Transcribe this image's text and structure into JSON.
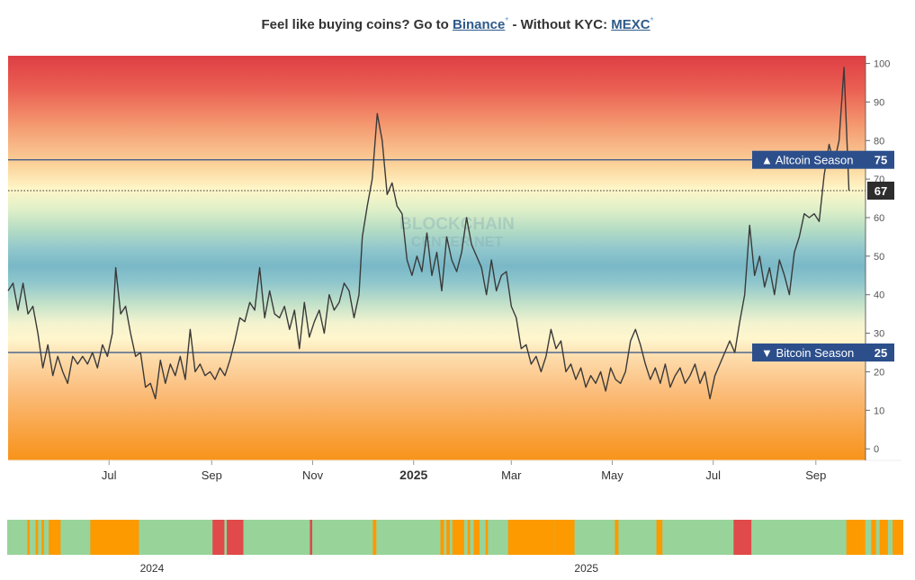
{
  "promo": {
    "lead": "Feel like buying coins? Go to",
    "binance": "Binance",
    "star": "*",
    "mid": "- Without KYC:",
    "mexc": "MEXC"
  },
  "chart_data": [
    {
      "type": "line",
      "ylim": [
        -3,
        102
      ],
      "y_ticks": [
        0,
        10,
        20,
        30,
        40,
        50,
        60,
        70,
        80,
        90,
        100
      ],
      "x_tick_labels": [
        "Jul",
        "Sep",
        "Nov",
        "2025",
        "Mar",
        "May",
        "Jul",
        "Sep"
      ],
      "x_tick_dates": [
        "2024-07-01",
        "2024-09-01",
        "2024-11-01",
        "2025-01-01",
        "2025-03-01",
        "2025-05-01",
        "2025-07-01",
        "2025-09-01"
      ],
      "x_range": [
        "2024-05-01",
        "2025-10-01"
      ],
      "watermark": [
        "BLOCKCHAIN",
        "CENTER.NET"
      ],
      "thresholds": [
        {
          "label": "▲ Altcoin Season",
          "value": 75
        },
        {
          "label": "▼ Bitcoin Season",
          "value": 25
        }
      ],
      "current": {
        "value": 67
      },
      "series": [
        {
          "points": [
            [
              "2024-05-01",
              41
            ],
            [
              "2024-05-04",
              43
            ],
            [
              "2024-05-07",
              36
            ],
            [
              "2024-05-10",
              43
            ],
            [
              "2024-05-13",
              35
            ],
            [
              "2024-05-16",
              37
            ],
            [
              "2024-05-19",
              30
            ],
            [
              "2024-05-22",
              21
            ],
            [
              "2024-05-25",
              27
            ],
            [
              "2024-05-28",
              19
            ],
            [
              "2024-05-31",
              24
            ],
            [
              "2024-06-03",
              20
            ],
            [
              "2024-06-06",
              17
            ],
            [
              "2024-06-09",
              24
            ],
            [
              "2024-06-12",
              22
            ],
            [
              "2024-06-15",
              24
            ],
            [
              "2024-06-18",
              22
            ],
            [
              "2024-06-21",
              25
            ],
            [
              "2024-06-24",
              21
            ],
            [
              "2024-06-27",
              27
            ],
            [
              "2024-06-30",
              24
            ],
            [
              "2024-07-03",
              30
            ],
            [
              "2024-07-05",
              47
            ],
            [
              "2024-07-08",
              35
            ],
            [
              "2024-07-11",
              37
            ],
            [
              "2024-07-14",
              30
            ],
            [
              "2024-07-17",
              24
            ],
            [
              "2024-07-20",
              25
            ],
            [
              "2024-07-23",
              16
            ],
            [
              "2024-07-26",
              17
            ],
            [
              "2024-07-29",
              13
            ],
            [
              "2024-08-01",
              23
            ],
            [
              "2024-08-04",
              17
            ],
            [
              "2024-08-07",
              22
            ],
            [
              "2024-08-10",
              19
            ],
            [
              "2024-08-13",
              24
            ],
            [
              "2024-08-16",
              18
            ],
            [
              "2024-08-19",
              31
            ],
            [
              "2024-08-22",
              20
            ],
            [
              "2024-08-25",
              22
            ],
            [
              "2024-08-28",
              19
            ],
            [
              "2024-08-31",
              20
            ],
            [
              "2024-09-03",
              18
            ],
            [
              "2024-09-06",
              21
            ],
            [
              "2024-09-09",
              19
            ],
            [
              "2024-09-12",
              23
            ],
            [
              "2024-09-15",
              28
            ],
            [
              "2024-09-18",
              34
            ],
            [
              "2024-09-21",
              33
            ],
            [
              "2024-09-24",
              38
            ],
            [
              "2024-09-27",
              36
            ],
            [
              "2024-09-30",
              47
            ],
            [
              "2024-10-03",
              34
            ],
            [
              "2024-10-06",
              41
            ],
            [
              "2024-10-09",
              35
            ],
            [
              "2024-10-12",
              34
            ],
            [
              "2024-10-15",
              37
            ],
            [
              "2024-10-18",
              31
            ],
            [
              "2024-10-21",
              36
            ],
            [
              "2024-10-24",
              26
            ],
            [
              "2024-10-27",
              38
            ],
            [
              "2024-10-30",
              29
            ],
            [
              "2024-11-02",
              33
            ],
            [
              "2024-11-05",
              36
            ],
            [
              "2024-11-08",
              30
            ],
            [
              "2024-11-11",
              40
            ],
            [
              "2024-11-14",
              36
            ],
            [
              "2024-11-17",
              38
            ],
            [
              "2024-11-20",
              43
            ],
            [
              "2024-11-23",
              41
            ],
            [
              "2024-11-26",
              34
            ],
            [
              "2024-11-29",
              40
            ],
            [
              "2024-12-01",
              55
            ],
            [
              "2024-12-04",
              63
            ],
            [
              "2024-12-07",
              70
            ],
            [
              "2024-12-10",
              87
            ],
            [
              "2024-12-13",
              80
            ],
            [
              "2024-12-16",
              66
            ],
            [
              "2024-12-19",
              69
            ],
            [
              "2024-12-22",
              63
            ],
            [
              "2024-12-25",
              61
            ],
            [
              "2024-12-28",
              49
            ],
            [
              "2024-12-31",
              45
            ],
            [
              "2025-01-03",
              50
            ],
            [
              "2025-01-06",
              46
            ],
            [
              "2025-01-09",
              56
            ],
            [
              "2025-01-12",
              45
            ],
            [
              "2025-01-15",
              51
            ],
            [
              "2025-01-18",
              41
            ],
            [
              "2025-01-21",
              55
            ],
            [
              "2025-01-24",
              49
            ],
            [
              "2025-01-27",
              46
            ],
            [
              "2025-01-30",
              51
            ],
            [
              "2025-02-02",
              60
            ],
            [
              "2025-02-05",
              53
            ],
            [
              "2025-02-08",
              50
            ],
            [
              "2025-02-11",
              47
            ],
            [
              "2025-02-14",
              40
            ],
            [
              "2025-02-17",
              49
            ],
            [
              "2025-02-20",
              41
            ],
            [
              "2025-02-23",
              45
            ],
            [
              "2025-02-26",
              46
            ],
            [
              "2025-03-01",
              37
            ],
            [
              "2025-03-04",
              34
            ],
            [
              "2025-03-07",
              26
            ],
            [
              "2025-03-10",
              27
            ],
            [
              "2025-03-13",
              22
            ],
            [
              "2025-03-16",
              24
            ],
            [
              "2025-03-19",
              20
            ],
            [
              "2025-03-22",
              24
            ],
            [
              "2025-03-25",
              31
            ],
            [
              "2025-03-28",
              26
            ],
            [
              "2025-03-31",
              28
            ],
            [
              "2025-04-03",
              20
            ],
            [
              "2025-04-06",
              22
            ],
            [
              "2025-04-09",
              18
            ],
            [
              "2025-04-12",
              21
            ],
            [
              "2025-04-15",
              16
            ],
            [
              "2025-04-18",
              19
            ],
            [
              "2025-04-21",
              17
            ],
            [
              "2025-04-24",
              20
            ],
            [
              "2025-04-27",
              15
            ],
            [
              "2025-04-30",
              21
            ],
            [
              "2025-05-03",
              18
            ],
            [
              "2025-05-06",
              17
            ],
            [
              "2025-05-09",
              20
            ],
            [
              "2025-05-12",
              28
            ],
            [
              "2025-05-15",
              31
            ],
            [
              "2025-05-18",
              27
            ],
            [
              "2025-05-21",
              22
            ],
            [
              "2025-05-24",
              18
            ],
            [
              "2025-05-27",
              21
            ],
            [
              "2025-05-30",
              17
            ],
            [
              "2025-06-02",
              22
            ],
            [
              "2025-06-05",
              16
            ],
            [
              "2025-06-08",
              19
            ],
            [
              "2025-06-11",
              21
            ],
            [
              "2025-06-14",
              17
            ],
            [
              "2025-06-17",
              19
            ],
            [
              "2025-06-20",
              22
            ],
            [
              "2025-06-23",
              17
            ],
            [
              "2025-06-26",
              20
            ],
            [
              "2025-06-29",
              13
            ],
            [
              "2025-07-02",
              19
            ],
            [
              "2025-07-05",
              22
            ],
            [
              "2025-07-08",
              25
            ],
            [
              "2025-07-11",
              28
            ],
            [
              "2025-07-14",
              25
            ],
            [
              "2025-07-17",
              33
            ],
            [
              "2025-07-20",
              40
            ],
            [
              "2025-07-23",
              58
            ],
            [
              "2025-07-26",
              45
            ],
            [
              "2025-07-29",
              50
            ],
            [
              "2025-08-01",
              42
            ],
            [
              "2025-08-04",
              47
            ],
            [
              "2025-08-07",
              40
            ],
            [
              "2025-08-10",
              49
            ],
            [
              "2025-08-13",
              45
            ],
            [
              "2025-08-16",
              40
            ],
            [
              "2025-08-19",
              51
            ],
            [
              "2025-08-22",
              55
            ],
            [
              "2025-08-25",
              61
            ],
            [
              "2025-08-28",
              60
            ],
            [
              "2025-08-31",
              61
            ],
            [
              "2025-09-03",
              59
            ],
            [
              "2025-09-06",
              71
            ],
            [
              "2025-09-09",
              79
            ],
            [
              "2025-09-12",
              74
            ],
            [
              "2025-09-15",
              80
            ],
            [
              "2025-09-18",
              99
            ],
            [
              "2025-09-21",
              67
            ]
          ]
        }
      ]
    },
    {
      "type": "heatmap",
      "x_tick_labels": [
        "2024",
        "2025"
      ],
      "x_tick_dates": [
        "2024-01-01",
        "2025-01-01"
      ],
      "x_range": [
        "2023-09-01",
        "2025-09-25"
      ],
      "legend": [
        {
          "color": "#98d49a",
          "meaning": "neutral"
        },
        {
          "color": "#fc9a00",
          "meaning": "Bitcoin season"
        },
        {
          "color": "#e04a4a",
          "meaning": "Altcoin season"
        }
      ],
      "segments": [
        [
          "2023-09-18",
          "2023-09-20",
          "#fc9a00"
        ],
        [
          "2023-09-25",
          "2023-09-27",
          "#fc9a00"
        ],
        [
          "2023-09-30",
          "2023-10-02",
          "#fc9a00"
        ],
        [
          "2023-10-06",
          "2023-10-16",
          "#fc9a00"
        ],
        [
          "2023-11-10",
          "2023-12-21",
          "#fc9a00"
        ],
        [
          "2024-02-21",
          "2024-03-02",
          "#e04a4a"
        ],
        [
          "2024-03-04",
          "2024-03-18",
          "#e04a4a"
        ],
        [
          "2024-05-13",
          "2024-05-15",
          "#e04a4a"
        ],
        [
          "2024-07-05",
          "2024-07-08",
          "#fc9a00"
        ],
        [
          "2024-08-31",
          "2024-09-03",
          "#fc9a00"
        ],
        [
          "2024-09-05",
          "2024-09-08",
          "#fc9a00"
        ],
        [
          "2024-09-10",
          "2024-09-20",
          "#fc9a00"
        ],
        [
          "2024-09-23",
          "2024-09-25",
          "#fc9a00"
        ],
        [
          "2024-09-28",
          "2024-10-03",
          "#fc9a00"
        ],
        [
          "2024-10-08",
          "2024-10-10",
          "#fc9a00"
        ],
        [
          "2024-10-27",
          "2024-12-05",
          "#fc9a00"
        ],
        [
          "2024-12-05",
          "2024-12-22",
          "#fc9a00"
        ],
        [
          "2025-01-25",
          "2025-01-28",
          "#fc9a00"
        ],
        [
          "2025-03-01",
          "2025-03-06",
          "#fc9a00"
        ],
        [
          "2025-05-05",
          "2025-05-20",
          "#e04a4a"
        ],
        [
          "2025-08-08",
          "2025-08-24",
          "#fc9a00"
        ],
        [
          "2025-08-29",
          "2025-09-02",
          "#fc9a00"
        ],
        [
          "2025-09-05",
          "2025-09-12",
          "#fc9a00"
        ],
        [
          "2025-09-16",
          "2025-10-30",
          "#fc9a00"
        ],
        [
          "2025-11-03",
          "2025-12-31",
          "#fc9a00"
        ],
        [
          "2026-01-02",
          "2026-01-05",
          "#fc9a00"
        ],
        [
          "2026-01-14",
          "2026-01-31",
          "#e04a4a"
        ]
      ]
    }
  ]
}
